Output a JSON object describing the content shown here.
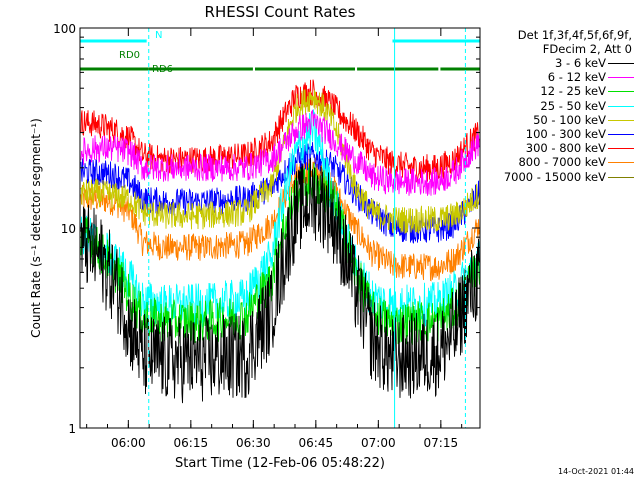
{
  "chart_data": {
    "type": "line",
    "title": "RHESSI Count Rates",
    "xlabel": "Start Time (12-Feb-06 05:48:22)",
    "ylabel": "Count Rate (s⁻¹ detector segment⁻¹)",
    "yscale": "log",
    "ylim": [
      1,
      100
    ],
    "y_ticks": [
      "1",
      "10",
      "100"
    ],
    "xlim_minutes": [
      0,
      96
    ],
    "x_ticks": [
      "06:00",
      "06:15",
      "06:30",
      "06:45",
      "07:00",
      "07:15"
    ],
    "x_tick_minutes": [
      11.6,
      26.6,
      41.6,
      56.6,
      71.6,
      86.6
    ],
    "legend_header": [
      "Det 1f,3f,4f,5f,6f,9f,",
      "FDecim 2, Att 0"
    ],
    "legend_position": "right",
    "series": [
      {
        "name": "3 - 6 keV",
        "color": "#000000",
        "x": [
          0,
          4,
          8,
          12,
          15,
          20,
          30,
          40,
          46,
          49,
          52,
          56,
          60,
          63,
          66,
          70,
          75,
          80,
          86,
          90,
          93,
          96
        ],
        "y": [
          8.5,
          7.5,
          5.5,
          3.2,
          2.3,
          2.2,
          2.2,
          2.3,
          3.8,
          7,
          12,
          14.5,
          12,
          8,
          5,
          2.8,
          2.2,
          2.3,
          2.4,
          3,
          4.5,
          5.8
        ]
      },
      {
        "name": "6 - 12 keV",
        "color": "#ff00ff",
        "x": [
          0,
          4,
          8,
          12,
          15,
          20,
          30,
          40,
          46,
          49,
          52,
          56,
          60,
          63,
          66,
          70,
          75,
          80,
          86,
          90,
          93,
          96
        ],
        "y": [
          24,
          25,
          25,
          24,
          20,
          20,
          20,
          20,
          22,
          26,
          31,
          34,
          29,
          25,
          22,
          18,
          17,
          17,
          17,
          19,
          23,
          27
        ]
      },
      {
        "name": "12 - 25 keV",
        "color": "#00e000",
        "x": [
          0,
          4,
          8,
          12,
          15,
          20,
          30,
          40,
          46,
          49,
          52,
          56,
          60,
          63,
          66,
          70,
          75,
          80,
          86,
          90,
          93,
          96
        ],
        "y": [
          9.5,
          8,
          6.3,
          4.5,
          3.6,
          3.4,
          3.4,
          3.6,
          5.5,
          10,
          15,
          17,
          14.5,
          10,
          6,
          3.8,
          3.3,
          3.4,
          3.4,
          4,
          5,
          6.5
        ]
      },
      {
        "name": "25 - 50 keV",
        "color": "#00ffff",
        "x": [
          0,
          4,
          8,
          12,
          15,
          20,
          30,
          40,
          46,
          49,
          52,
          56,
          60,
          63,
          66,
          70,
          75,
          80,
          86,
          90,
          93,
          96
        ],
        "y": [
          9.5,
          8.5,
          7,
          5.5,
          4.3,
          4.1,
          4.1,
          4.4,
          7,
          14,
          24,
          31,
          16,
          10,
          6.5,
          4.5,
          4.1,
          4.1,
          4.2,
          4.8,
          5.8,
          7
        ]
      },
      {
        "name": "50 - 100 keV",
        "color": "#c8c800",
        "x": [
          0,
          4,
          8,
          12,
          15,
          20,
          30,
          40,
          46,
          49,
          52,
          56,
          60,
          63,
          66,
          70,
          75,
          80,
          86,
          90,
          93,
          96
        ],
        "y": [
          15,
          15,
          14.5,
          14,
          12,
          11.5,
          11.5,
          12,
          16,
          26,
          40,
          46,
          36,
          25,
          16,
          12,
          11,
          11,
          11,
          11.5,
          13,
          15
        ]
      },
      {
        "name": "100 - 300 keV",
        "color": "#0000ff",
        "x": [
          0,
          4,
          8,
          12,
          15,
          20,
          30,
          40,
          46,
          49,
          52,
          56,
          60,
          63,
          66,
          70,
          75,
          80,
          86,
          90,
          93,
          96
        ],
        "y": [
          19,
          19,
          18.5,
          17,
          14,
          13.5,
          13.5,
          14,
          16,
          19,
          22,
          23,
          21,
          18,
          15,
          12,
          10,
          9.8,
          9.8,
          10.5,
          12.5,
          15
        ]
      },
      {
        "name": "300 - 800 keV",
        "color": "#ff0000",
        "x": [
          0,
          4,
          8,
          12,
          15,
          20,
          30,
          40,
          46,
          49,
          52,
          56,
          60,
          63,
          66,
          70,
          75,
          80,
          86,
          90,
          93,
          96
        ],
        "y": [
          34,
          33,
          31,
          28,
          23,
          22,
          22,
          23,
          27,
          36,
          46,
          48,
          42,
          36,
          31,
          24,
          21,
          20,
          20,
          22,
          26,
          30
        ]
      },
      {
        "name": "800 - 7000 keV",
        "color": "#ff8000",
        "x": [
          0,
          4,
          8,
          12,
          15,
          20,
          30,
          40,
          46,
          49,
          52,
          56,
          60,
          63,
          66,
          70,
          75,
          80,
          86,
          90,
          93,
          96
        ],
        "y": [
          14,
          14,
          13.5,
          12,
          8.5,
          8,
          8,
          8.3,
          10.5,
          14,
          18,
          20,
          17,
          13,
          10,
          7.5,
          6.5,
          6.4,
          6.4,
          7,
          8.5,
          10.5
        ]
      },
      {
        "name": "7000 - 15000 keV",
        "color": "#808000",
        "x": [],
        "y": []
      }
    ],
    "flags": [
      {
        "name": "N",
        "color": "#00ffff",
        "level": 1,
        "segments": [
          [
            0,
            16
          ],
          [
            75,
            96
          ]
        ]
      },
      {
        "name": "RD0",
        "color": "#008000",
        "level": 2,
        "segments": []
      },
      {
        "name": "RD6",
        "color": "#008000",
        "level": 3,
        "segments": [
          [
            0,
            16.5
          ],
          [
            16.5,
            41.5
          ],
          [
            42,
            66
          ],
          [
            66.5,
            86
          ],
          [
            86.5,
            96
          ]
        ]
      }
    ],
    "vertical_markers": [
      {
        "color": "#00ffff",
        "style": "dashed",
        "x_minutes": 16.5
      },
      {
        "color": "#00ffff",
        "style": "solid",
        "x_minutes": 75.5
      },
      {
        "color": "#00ffff",
        "style": "dashed",
        "x_minutes": 92.5
      }
    ]
  },
  "footer": {
    "timestamp": "14-Oct-2021 01:44"
  }
}
